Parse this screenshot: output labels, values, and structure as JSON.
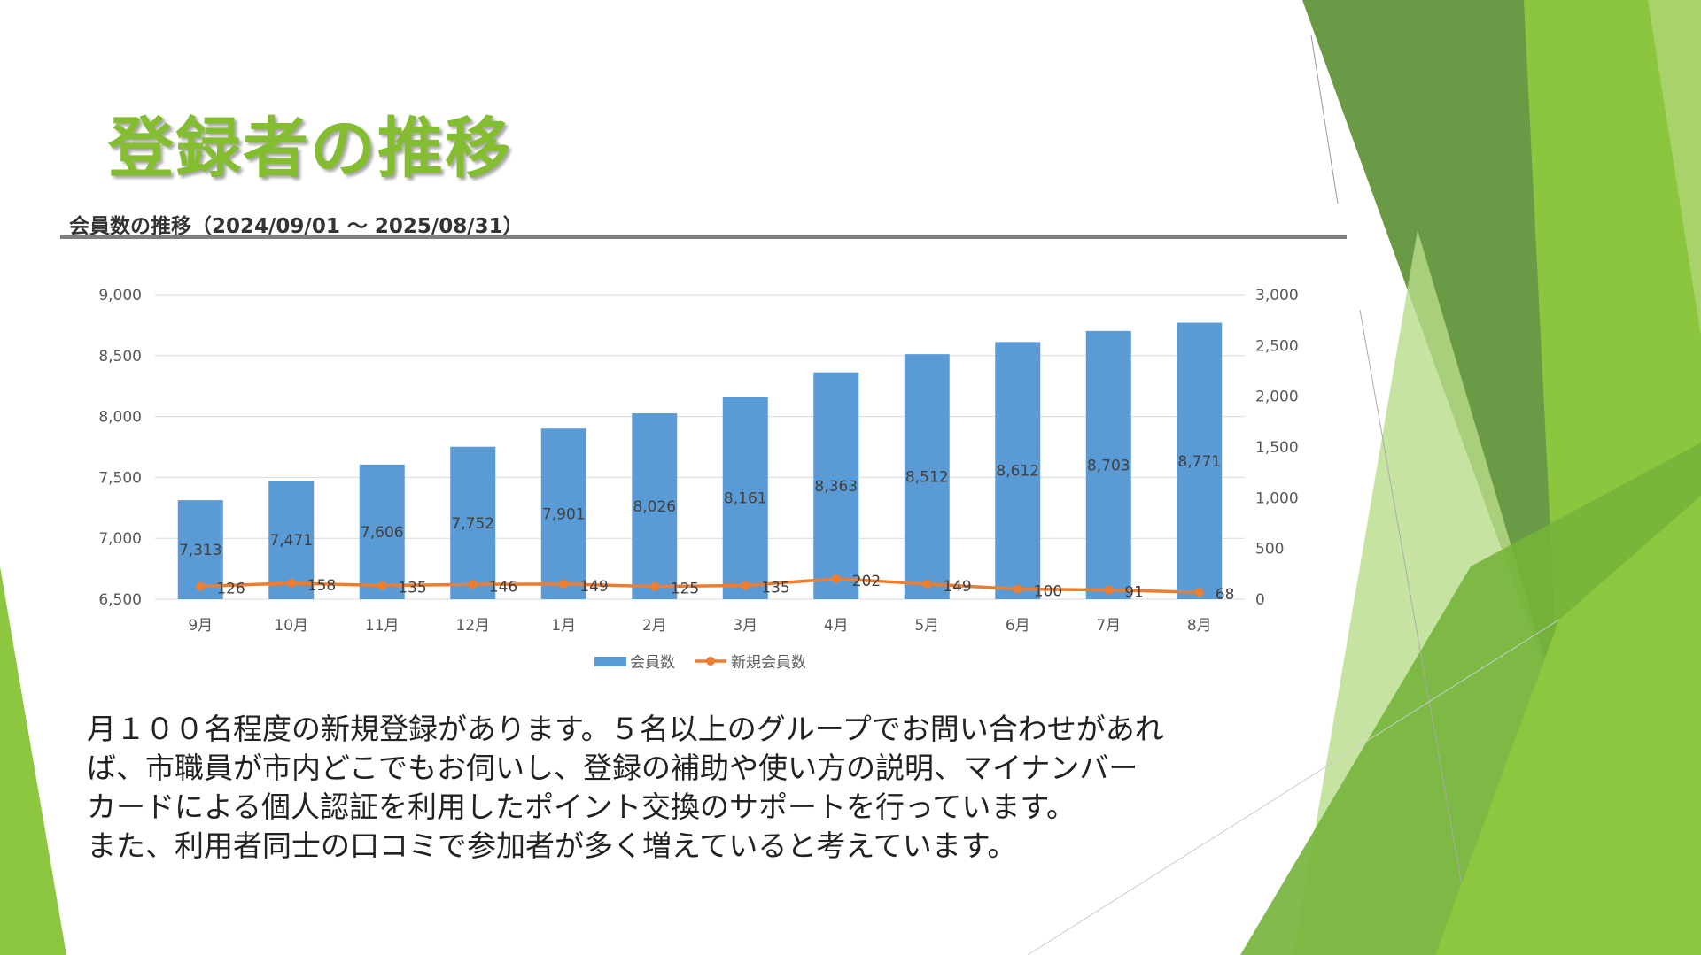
{
  "slide": {
    "title": "登録者の推移",
    "subtitle": "会員数の推移（2024/09/01 ～ 2025/08/31）",
    "body_lines": [
      "月１００名程度の新規登録があります。５名以上のグループでお問い合わせがあれ",
      "ば、市職員が市内どこでもお伺いし、登録の補助や使い方の説明、マイナンバー",
      "カードによる個人認証を利用したポイント交換のサポートを行っています。",
      "また、利用者同士の口コミで参加者が多く増えていると考えています。"
    ]
  },
  "chart_data": {
    "type": "bar+line",
    "title": "会員数の推移（2024/09/01 ～ 2025/08/31）",
    "categories": [
      "9月",
      "10月",
      "11月",
      "12月",
      "1月",
      "2月",
      "3月",
      "4月",
      "5月",
      "6月",
      "7月",
      "8月"
    ],
    "series": [
      {
        "name": "会員数",
        "type": "bar",
        "axis": "left",
        "color": "#5b9bd5",
        "values": [
          7313,
          7471,
          7606,
          7752,
          7901,
          8026,
          8161,
          8363,
          8512,
          8612,
          8703,
          8771
        ],
        "labels": [
          "7,313",
          "7,471",
          "7,606",
          "7,752",
          "7,901",
          "8,026",
          "8,161",
          "8,363",
          "8,512",
          "8,612",
          "8,703",
          "8,771"
        ]
      },
      {
        "name": "新規会員数",
        "type": "line",
        "axis": "right",
        "color": "#ed7d31",
        "values": [
          126,
          158,
          135,
          146,
          149,
          125,
          135,
          202,
          149,
          100,
          91,
          68
        ],
        "labels": [
          "126",
          "158",
          "135",
          "146",
          "149",
          "125",
          "135",
          "202",
          "149",
          "100",
          "91",
          "68"
        ]
      }
    ],
    "left_axis": {
      "range": [
        6500,
        9000
      ],
      "ticks": [
        "6,500",
        "7,000",
        "7,500",
        "8,000",
        "8,500",
        "9,000"
      ],
      "values": [
        6500,
        7000,
        7500,
        8000,
        8500,
        9000
      ]
    },
    "right_axis": {
      "range": [
        0,
        3000
      ],
      "ticks": [
        "0",
        "500",
        "1,000",
        "1,500",
        "2,000",
        "2,500",
        "3,000"
      ],
      "values": [
        0,
        500,
        1000,
        1500,
        2000,
        2500,
        3000
      ]
    },
    "grid": true,
    "legend": "bottom"
  }
}
